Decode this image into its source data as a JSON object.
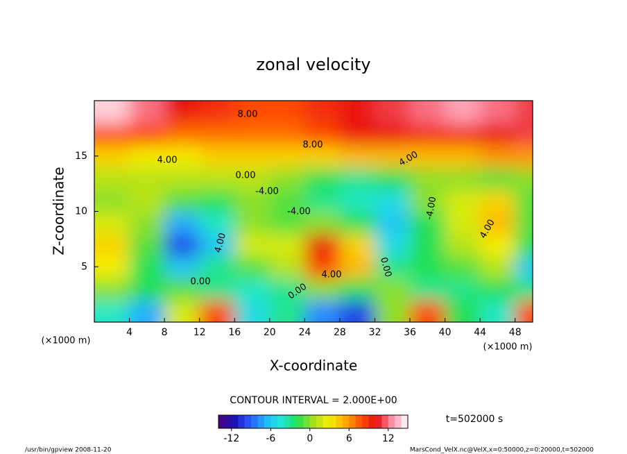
{
  "chart_data": {
    "type": "contour",
    "title": "zonal velocity",
    "x_label": "X-coordinate",
    "y_label": "Z-coordinate",
    "x_unit": "(×1000 m)",
    "y_unit": "(×1000 m)",
    "xlim": [
      0,
      50
    ],
    "ylim": [
      0,
      20
    ],
    "xticks": [
      4,
      8,
      12,
      16,
      20,
      24,
      28,
      32,
      36,
      40,
      44,
      48
    ],
    "yticks": [
      5,
      10,
      15
    ],
    "x": [
      2,
      6,
      10,
      14,
      18,
      22,
      26,
      30,
      34,
      38,
      42,
      46,
      50
    ],
    "z": [
      1,
      3,
      5,
      7,
      9,
      11,
      13,
      15,
      17,
      19
    ],
    "values": [
      [
        -4,
        -7,
        2,
        8,
        -5,
        -3,
        -8,
        -10,
        0,
        8,
        -2,
        -4,
        8
      ],
      [
        0,
        -2,
        -1,
        -3,
        -4,
        -3,
        0,
        -2,
        0,
        -3,
        -3,
        -2,
        -3
      ],
      [
        3,
        -2,
        -6,
        -3,
        -1,
        1,
        8,
        5,
        -3,
        -2,
        -1,
        1,
        -6
      ],
      [
        4,
        -1,
        -10,
        -6,
        2,
        2,
        10,
        4,
        -5,
        -2,
        1,
        3,
        -2
      ],
      [
        2,
        0,
        -7,
        -4,
        0,
        -1,
        0,
        -2,
        -6,
        -2,
        2,
        5,
        -1
      ],
      [
        0,
        1,
        -1,
        -2,
        0,
        -1,
        -3,
        -4,
        -5,
        0,
        2,
        4,
        -1
      ],
      [
        1,
        1,
        1,
        1,
        1,
        0,
        -2,
        -3,
        -2,
        0,
        0,
        -1,
        0
      ],
      [
        4,
        3,
        3,
        4,
        4,
        4,
        4,
        5,
        5,
        5,
        5,
        6,
        6
      ],
      [
        8,
        8,
        7,
        7,
        7,
        7,
        8,
        10,
        10,
        9,
        9,
        10,
        11
      ],
      [
        14,
        12,
        10,
        9,
        8,
        8,
        9,
        10,
        11,
        12,
        13,
        12,
        11
      ]
    ],
    "contour_labels": [
      "8.00",
      "8.00",
      "4.00",
      "4.00",
      "0.00",
      "-4.00",
      "-4.00",
      "-4.00",
      "4.00",
      "4.00",
      "0.00",
      "4.00",
      "0.00",
      "0.00"
    ],
    "colormap": [
      "#50007a",
      "#1a10b8",
      "#2a5cff",
      "#20b8ff",
      "#20e8d8",
      "#20e050",
      "#a8e020",
      "#f4f000",
      "#ffb000",
      "#ff5000",
      "#e81010",
      "#ff90a8",
      "#ffffff"
    ],
    "clim": [
      -14,
      15
    ],
    "colorbar_ticks": [
      -12,
      -6,
      0,
      6,
      12
    ],
    "contour_interval": "CONTOUR INTERVAL = 2.000E+00",
    "time_label": "t=502000 s",
    "footer_left": "/usr/bin/gpview  2008-11-20",
    "footer_right": "MarsCond_VelX.nc@VelX,x=0:50000,z=0:20000,t=502000"
  }
}
